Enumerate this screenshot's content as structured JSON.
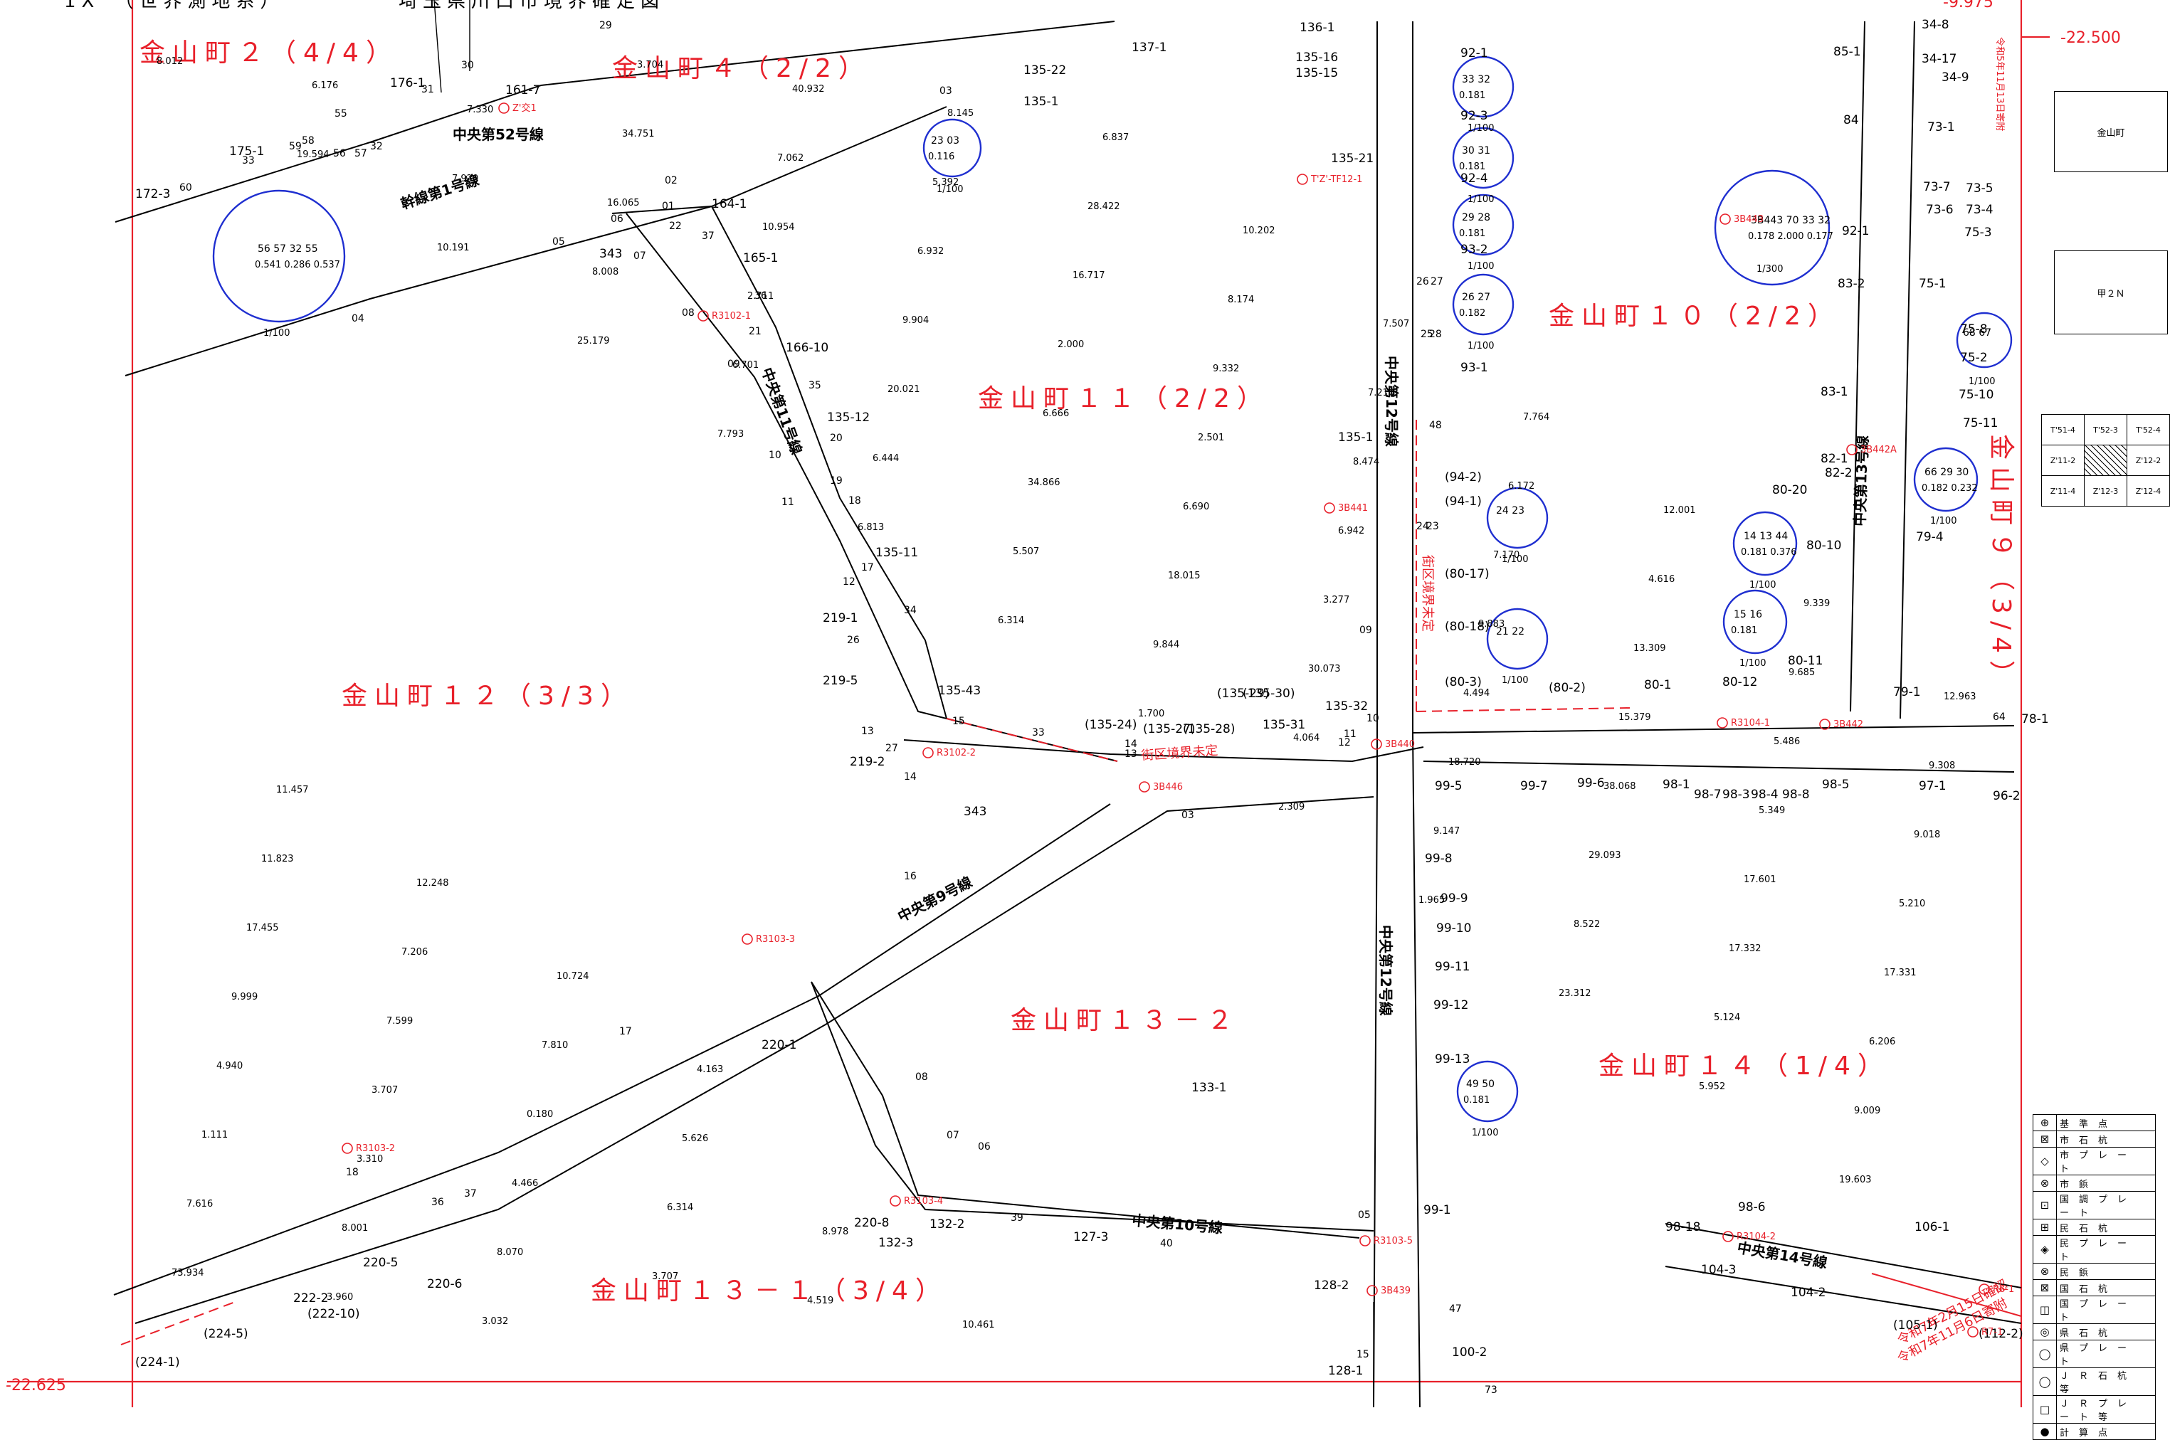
{
  "header": {
    "title_left": "1X　（世界測地系）",
    "title_main": "埼玉県川口市境界確定図"
  },
  "coords": {
    "top_right_x": "-9.975",
    "right_y_top": "-22.500",
    "left_y_bottom": "-22.625"
  },
  "zones": [
    {
      "id": "z2",
      "text": "金山町２（4/4）"
    },
    {
      "id": "z4",
      "text": "金山町４（2/2）"
    },
    {
      "id": "z11",
      "text": "金山町１１（2/2）"
    },
    {
      "id": "z10",
      "text": "金山町１０（2/2）"
    },
    {
      "id": "z12",
      "text": "金山町１２（3/3）"
    },
    {
      "id": "z132",
      "text": "金山町１３－２"
    },
    {
      "id": "z14",
      "text": "金山町１４（1/4）"
    },
    {
      "id": "z131",
      "text": "金山町１３－１（3/4）"
    },
    {
      "id": "z9",
      "text": "金山町９（3/4）"
    }
  ],
  "roads": {
    "kansen1": "幹線第1号線",
    "chuo52": "中央第52号線",
    "chuo11": "中央第11号線",
    "chuo12a": "中央第12号線",
    "chuo12b": "中央第12号線",
    "chuo13": "中央第13号線",
    "chuo9": "中央第9号線",
    "chuo10": "中央第10号線",
    "chuo14": "中央第14号線"
  },
  "undetermined": {
    "a": "街区境界未定",
    "b": "街区境界未定"
  },
  "notes": {
    "note_top_right": "令和5年11月13日寄附",
    "note_bottom_1": "令和7年2月15日確認",
    "note_bottom_2": "令和7年11月6日寄附"
  },
  "side_boxes": {
    "box1": "金山町",
    "box2": "甲２Ｎ"
  },
  "index_grid": [
    [
      "T'51-4",
      "T'52-3",
      "T'52-4"
    ],
    [
      "Z'11-2",
      "",
      "Z'12-2"
    ],
    [
      "Z'11-4",
      "Z'12-3",
      "Z'12-4"
    ]
  ],
  "legend": [
    {
      "icon": "reference-point-icon",
      "symbol": "⊕",
      "label": "基準点"
    },
    {
      "icon": "city-stone-post-icon",
      "symbol": "⊠",
      "label": "市石杭"
    },
    {
      "icon": "city-plate-icon",
      "symbol": "◇",
      "label": "市プレート"
    },
    {
      "icon": "city-rivet-icon",
      "symbol": "⊗",
      "label": "市鋲"
    },
    {
      "icon": "national-survey-plate-icon",
      "symbol": "⊡",
      "label": "国調プレート"
    },
    {
      "icon": "private-stone-post-icon",
      "symbol": "⊞",
      "label": "民石杭"
    },
    {
      "icon": "private-plate-icon",
      "symbol": "◈",
      "label": "民プレート"
    },
    {
      "icon": "private-rivet-icon",
      "symbol": "⊗",
      "label": "民鋲"
    },
    {
      "icon": "national-stone-post-icon",
      "symbol": "⊠",
      "label": "国石杭"
    },
    {
      "icon": "national-plate-icon",
      "symbol": "◫",
      "label": "国プレート"
    },
    {
      "icon": "prefecture-stone-post-icon",
      "symbol": "◎",
      "label": "県石杭"
    },
    {
      "icon": "prefecture-plate-icon",
      "symbol": "◯",
      "label": "県プレート"
    },
    {
      "icon": "jr-stone-post-icon",
      "symbol": "◯",
      "label": "ＪＲ石杭等"
    },
    {
      "icon": "jr-plate-icon",
      "symbol": "□",
      "label": "ＪＲプレート等"
    },
    {
      "icon": "computed-point-icon",
      "symbol": "●",
      "label": "計算点"
    }
  ],
  "lots": [
    {
      "t": "161-7"
    },
    {
      "t": "176-1"
    },
    {
      "t": "175-1"
    },
    {
      "t": "172-3"
    },
    {
      "t": "343"
    },
    {
      "t": "164-1"
    },
    {
      "t": "165-1"
    },
    {
      "t": "166-10"
    },
    {
      "t": "135-12"
    },
    {
      "t": "135-11"
    },
    {
      "t": "219-1"
    },
    {
      "t": "219-5"
    },
    {
      "t": "135-43"
    },
    {
      "t": "219-2"
    },
    {
      "t": "343"
    },
    {
      "t": "135-1"
    },
    {
      "t": "135-22"
    },
    {
      "t": "137-1"
    },
    {
      "t": "136-1"
    },
    {
      "t": "135-16"
    },
    {
      "t": "135-15"
    },
    {
      "t": "92-1"
    },
    {
      "t": "92-3"
    },
    {
      "t": "92-4"
    },
    {
      "t": "93-2"
    },
    {
      "t": "93-1"
    },
    {
      "t": "135-21"
    },
    {
      "t": "135-1"
    },
    {
      "t": "(94-2)"
    },
    {
      "t": "(94-1)"
    },
    {
      "t": "(80-17)"
    },
    {
      "t": "(80-18)"
    },
    {
      "t": "(80-3)"
    },
    {
      "t": "(80-2)"
    },
    {
      "t": "80-1"
    },
    {
      "t": "80-12"
    },
    {
      "t": "80-11"
    },
    {
      "t": "79-1"
    },
    {
      "t": "78-1"
    },
    {
      "t": "135-32"
    },
    {
      "t": "135-31"
    },
    {
      "t": "(135-24)"
    },
    {
      "t": "(135-27)"
    },
    {
      "t": "(135-28)"
    },
    {
      "t": "(135-29)"
    },
    {
      "t": "(135-30)"
    },
    {
      "t": "99-5"
    },
    {
      "t": "99-7"
    },
    {
      "t": "99-6"
    },
    {
      "t": "98-1"
    },
    {
      "t": "98-7"
    },
    {
      "t": "98-3"
    },
    {
      "t": "98-4"
    },
    {
      "t": "98-8"
    },
    {
      "t": "98-5"
    },
    {
      "t": "97-1"
    },
    {
      "t": "96-2"
    },
    {
      "t": "99-8"
    },
    {
      "t": "99-9"
    },
    {
      "t": "99-10"
    },
    {
      "t": "99-11"
    },
    {
      "t": "99-12"
    },
    {
      "t": "99-13"
    },
    {
      "t": "99-1"
    },
    {
      "t": "100-2"
    },
    {
      "t": "128-2"
    },
    {
      "t": "128-1"
    },
    {
      "t": "133-1"
    },
    {
      "t": "220-1"
    },
    {
      "t": "220-5"
    },
    {
      "t": "220-6"
    },
    {
      "t": "220-8"
    },
    {
      "t": "132-3"
    },
    {
      "t": "132-2"
    },
    {
      "t": "127-3"
    },
    {
      "t": "222-2"
    },
    {
      "t": "(222-10)"
    },
    {
      "t": "(224-5)"
    },
    {
      "t": "(224-1)"
    },
    {
      "t": "85-1"
    },
    {
      "t": "84"
    },
    {
      "t": "34-8"
    },
    {
      "t": "34-17"
    },
    {
      "t": "34-9"
    },
    {
      "t": "73-1"
    },
    {
      "t": "73-7"
    },
    {
      "t": "73-5"
    },
    {
      "t": "73-6"
    },
    {
      "t": "73-4"
    },
    {
      "t": "92-1"
    },
    {
      "t": "75-3"
    },
    {
      "t": "75-1"
    },
    {
      "t": "83-2"
    },
    {
      "t": "75-8"
    },
    {
      "t": "75-2"
    },
    {
      "t": "83-1"
    },
    {
      "t": "75-10"
    },
    {
      "t": "75-11"
    },
    {
      "t": "82-1"
    },
    {
      "t": "82-2"
    },
    {
      "t": "80-20"
    },
    {
      "t": "80-10"
    },
    {
      "t": "79-4"
    },
    {
      "t": "98-6"
    },
    {
      "t": "106-1"
    },
    {
      "t": "98-18"
    },
    {
      "t": "104-3"
    },
    {
      "t": "104-2"
    },
    {
      "t": "(105-1)"
    },
    {
      "t": "(112-2)"
    }
  ],
  "points": [
    {
      "t": "30"
    },
    {
      "t": "31"
    },
    {
      "t": "29"
    },
    {
      "t": "33"
    },
    {
      "t": "60"
    },
    {
      "t": "59"
    },
    {
      "t": "58"
    },
    {
      "t": "55"
    },
    {
      "t": "56"
    },
    {
      "t": "32"
    },
    {
      "t": "57"
    },
    {
      "t": "05"
    },
    {
      "t": "04"
    },
    {
      "t": "06"
    },
    {
      "t": "07"
    },
    {
      "t": "02"
    },
    {
      "t": "01"
    },
    {
      "t": "22"
    },
    {
      "t": "37"
    },
    {
      "t": "08"
    },
    {
      "t": "36"
    },
    {
      "t": "21"
    },
    {
      "t": "09"
    },
    {
      "t": "35"
    },
    {
      "t": "20"
    },
    {
      "t": "10"
    },
    {
      "t": "19"
    },
    {
      "t": "18"
    },
    {
      "t": "11"
    },
    {
      "t": "17"
    },
    {
      "t": "12"
    },
    {
      "t": "34"
    },
    {
      "t": "26"
    },
    {
      "t": "15"
    },
    {
      "t": "13"
    },
    {
      "t": "27"
    },
    {
      "t": "14"
    },
    {
      "t": "33"
    },
    {
      "t": "14"
    },
    {
      "t": "13"
    },
    {
      "t": "03"
    },
    {
      "t": "24"
    },
    {
      "t": "23"
    },
    {
      "t": "26"
    },
    {
      "t": "27"
    },
    {
      "t": "28"
    },
    {
      "t": "25"
    },
    {
      "t": "48"
    },
    {
      "t": "09"
    },
    {
      "t": "10"
    },
    {
      "t": "11"
    },
    {
      "t": "12"
    },
    {
      "t": "16"
    },
    {
      "t": "03"
    },
    {
      "t": "08"
    },
    {
      "t": "07"
    },
    {
      "t": "06"
    },
    {
      "t": "05"
    },
    {
      "t": "17"
    },
    {
      "t": "18"
    },
    {
      "t": "37"
    },
    {
      "t": "36"
    },
    {
      "t": "39"
    },
    {
      "t": "40"
    },
    {
      "t": "47"
    },
    {
      "t": "73"
    },
    {
      "t": "15"
    },
    {
      "t": "64"
    }
  ],
  "distances": [
    {
      "t": "8.012"
    },
    {
      "t": "19.594"
    },
    {
      "t": "10.191"
    },
    {
      "t": "25.179"
    },
    {
      "t": "7.793"
    },
    {
      "t": "6.813"
    },
    {
      "t": "6.314"
    },
    {
      "t": "1.700"
    },
    {
      "t": "2.309"
    },
    {
      "t": "1.965"
    },
    {
      "t": "23.312"
    },
    {
      "t": "5.952"
    },
    {
      "t": "19.603"
    },
    {
      "t": "73.934"
    },
    {
      "t": "6.176"
    },
    {
      "t": "7.920"
    },
    {
      "t": "8.008"
    },
    {
      "t": "6.701"
    },
    {
      "t": "6.444"
    },
    {
      "t": "5.507"
    },
    {
      "t": "9.844"
    },
    {
      "t": "4.064"
    },
    {
      "t": "9.147"
    },
    {
      "t": "8.522"
    },
    {
      "t": "5.124"
    },
    {
      "t": "9.009"
    },
    {
      "t": "7.616"
    },
    {
      "t": "3.960"
    },
    {
      "t": "7.330"
    },
    {
      "t": "16.065"
    },
    {
      "t": "2.711"
    },
    {
      "t": "20.021"
    },
    {
      "t": "34.866"
    },
    {
      "t": "18.015"
    },
    {
      "t": "30.073"
    },
    {
      "t": "18.720"
    },
    {
      "t": "29.093"
    },
    {
      "t": "17.332"
    },
    {
      "t": "6.206"
    },
    {
      "t": "1.111"
    },
    {
      "t": "8.001"
    },
    {
      "t": "3.032"
    },
    {
      "t": "34.751"
    },
    {
      "t": "10.954"
    },
    {
      "t": "9.904"
    },
    {
      "t": "6.666"
    },
    {
      "t": "6.690"
    },
    {
      "t": "3.277"
    },
    {
      "t": "4.494"
    },
    {
      "t": "38.068"
    },
    {
      "t": "17.601"
    },
    {
      "t": "17.331"
    },
    {
      "t": "4.940"
    },
    {
      "t": "3.310"
    },
    {
      "t": "8.070"
    },
    {
      "t": "3.704"
    },
    {
      "t": "7.062"
    },
    {
      "t": "6.932"
    },
    {
      "t": "2.000"
    },
    {
      "t": "2.501"
    },
    {
      "t": "6.942"
    },
    {
      "t": "9.883"
    },
    {
      "t": "15.379"
    },
    {
      "t": "5.349"
    },
    {
      "t": "5.210"
    },
    {
      "t": "9.999"
    },
    {
      "t": "3.707"
    },
    {
      "t": "4.466"
    },
    {
      "t": "3.707"
    },
    {
      "t": "40.932"
    },
    {
      "t": "5.392"
    },
    {
      "t": "16.717"
    },
    {
      "t": "9.332"
    },
    {
      "t": "8.474"
    },
    {
      "t": "7.170"
    },
    {
      "t": "13.309"
    },
    {
      "t": "5.486"
    },
    {
      "t": "9.018"
    },
    {
      "t": "17.455"
    },
    {
      "t": "7.599"
    },
    {
      "t": "0.180"
    },
    {
      "t": "6.314"
    },
    {
      "t": "4.519"
    },
    {
      "t": "8.145"
    },
    {
      "t": "28.422"
    },
    {
      "t": "8.174"
    },
    {
      "t": "7.210"
    },
    {
      "t": "6.172"
    },
    {
      "t": "4.616"
    },
    {
      "t": "9.685"
    },
    {
      "t": "9.308"
    },
    {
      "t": "11.823"
    },
    {
      "t": "7.206"
    },
    {
      "t": "7.810"
    },
    {
      "t": "5.626"
    },
    {
      "t": "8.978"
    },
    {
      "t": "10.461"
    },
    {
      "t": "6.837"
    },
    {
      "t": "10.202"
    },
    {
      "t": "7.507"
    },
    {
      "t": "7.764"
    },
    {
      "t": "12.001"
    },
    {
      "t": "9.339"
    },
    {
      "t": "12.963"
    },
    {
      "t": "11.457"
    },
    {
      "t": "12.248"
    },
    {
      "t": "10.724"
    },
    {
      "t": "4.163"
    }
  ],
  "detail_circles": [
    {
      "scale": "1/100",
      "pts": "56 57 32 55",
      "vals": "0.541 0.286 0.537"
    },
    {
      "scale": "1/100",
      "pts": "23 03",
      "vals": "0.116"
    },
    {
      "scale": "1/100",
      "pts": "33 32",
      "vals": "0.181"
    },
    {
      "scale": "1/100",
      "pts": "30 31",
      "vals": "0.181"
    },
    {
      "scale": "1/100",
      "pts": "29 28",
      "vals": "0.181"
    },
    {
      "scale": "1/100",
      "pts": "26 27",
      "vals": "0.182"
    },
    {
      "scale": "1/100",
      "pts": "24 23",
      "vals": ""
    },
    {
      "scale": "1/100",
      "pts": "21 22",
      "vals": ""
    },
    {
      "scale": "1/100",
      "pts": "49 50",
      "vals": "0.181"
    },
    {
      "scale": "1/300",
      "pts": "3B443 70 33 32",
      "vals": "0.178 2.000 0.177"
    },
    {
      "scale": "1/100",
      "pts": "68 67",
      "vals": ""
    },
    {
      "scale": "1/100",
      "pts": "66 29 30",
      "vals": "0.182 0.232"
    },
    {
      "scale": "1/100",
      "pts": "14 13 44",
      "vals": "0.181 0.376"
    },
    {
      "scale": "1/100",
      "pts": "15 16",
      "vals": "0.181"
    }
  ],
  "survey_marks": [
    {
      "t": "Z'交1"
    },
    {
      "t": "R3102-1"
    },
    {
      "t": "R3102-2"
    },
    {
      "t": "R3103-3"
    },
    {
      "t": "R3103-2"
    },
    {
      "t": "R3103-4"
    },
    {
      "t": "R3103-5"
    },
    {
      "t": "3B439"
    },
    {
      "t": "3B440"
    },
    {
      "t": "3B446"
    },
    {
      "t": "3B441"
    },
    {
      "t": "T'Z'-TF12-1"
    },
    {
      "t": "R3104-1"
    },
    {
      "t": "3B442"
    },
    {
      "t": "3B442A"
    },
    {
      "t": "3B443"
    },
    {
      "t": "R3104-2"
    },
    {
      "t": "R6-1"
    },
    {
      "t": "R7-1"
    }
  ]
}
